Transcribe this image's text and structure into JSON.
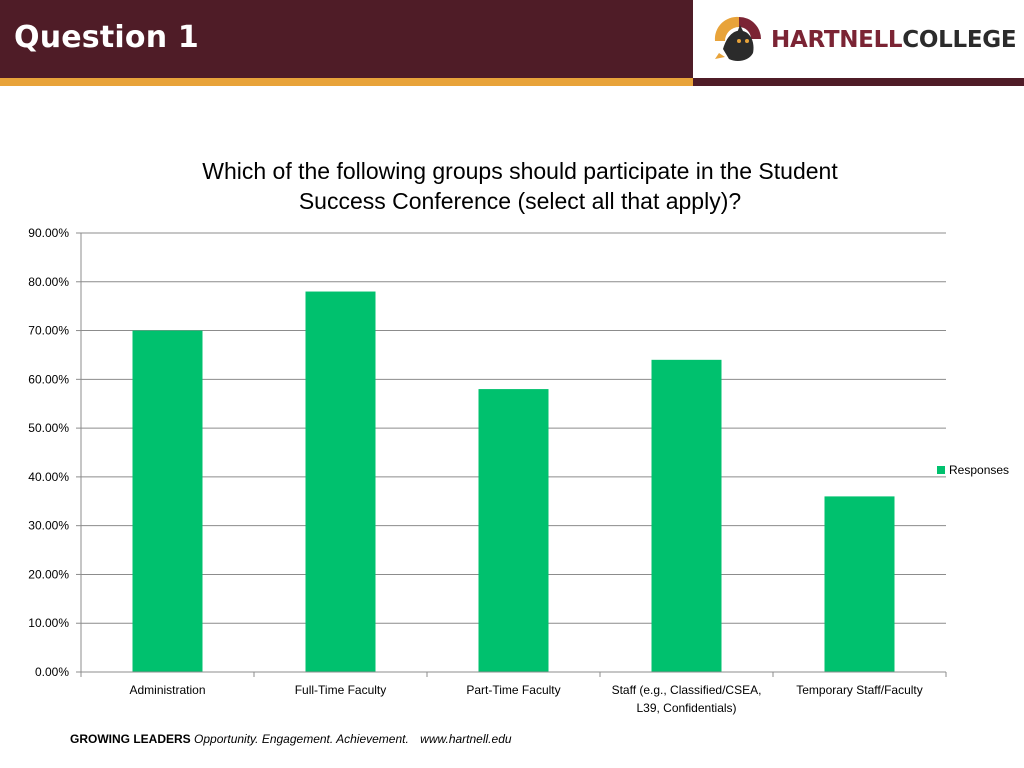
{
  "header": {
    "title": "Question 1",
    "logo": {
      "brand_part1": "HARTNELL",
      "brand_part2": "COLLEGE"
    }
  },
  "colors": {
    "header_bg": "#4f1c27",
    "accent_gold": "#e8a33a",
    "bar": "#00c16e"
  },
  "chart_data": {
    "type": "bar",
    "title_lines": [
      "Which of the following groups should participate in the Student",
      "Success Conference (select all that apply)?"
    ],
    "categories": [
      [
        "Administration"
      ],
      [
        "Full-Time Faculty"
      ],
      [
        "Part-Time Faculty"
      ],
      [
        "Staff (e.g., Classified/CSEA,",
        "L39, Confidentials)"
      ],
      [
        "Temporary Staff/Faculty"
      ]
    ],
    "series": [
      {
        "name": "Responses",
        "values": [
          70,
          78,
          58,
          64,
          36
        ]
      }
    ],
    "ylim": [
      0,
      90
    ],
    "yticks": [
      "0.00%",
      "10.00%",
      "20.00%",
      "30.00%",
      "40.00%",
      "50.00%",
      "60.00%",
      "70.00%",
      "80.00%",
      "90.00%"
    ],
    "grid": true,
    "legend_position": "right"
  },
  "footer": {
    "bold": "GROWING LEADERS",
    "tagline": "Opportunity. Engagement. Achievement.",
    "url": "www.hartnell.edu"
  }
}
